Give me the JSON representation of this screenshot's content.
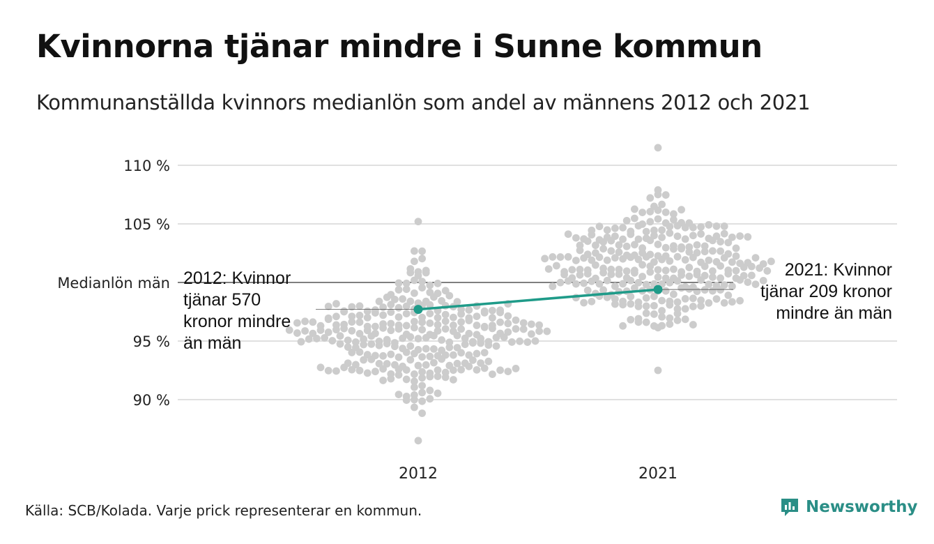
{
  "header": {
    "title": "Kvinnorna tjänar mindre i Sunne kommun",
    "subtitle": "Kommunanställda kvinnors medianlön som andel av männens 2012 och 2021"
  },
  "footer": {
    "source": "Källa: SCB/Kolada. Varje prick representerar en kommun.",
    "brand": "Newsworthy"
  },
  "colors": {
    "dots": "#cccccc",
    "highlight": "#1f9b89",
    "grid": "#e0e0e0",
    "reference": "#333333",
    "brand": "#2a8e86"
  },
  "chart_data": {
    "type": "scatter",
    "categories": [
      "2012",
      "2021"
    ],
    "ylim": [
      86,
      112
    ],
    "y_ticks": [
      {
        "value": 90,
        "label": "90 %"
      },
      {
        "value": 95,
        "label": "95 %"
      },
      {
        "value": 105,
        "label": "105 %"
      },
      {
        "value": 110,
        "label": "110 %"
      }
    ],
    "reference_line": {
      "value": 100,
      "label": "Medianlön män"
    },
    "distributions": [
      {
        "category": "2012",
        "min": 86.5,
        "max": 105.2,
        "mean": 95.5,
        "sd": 2.6,
        "count": 290
      },
      {
        "category": "2021",
        "min": 92.5,
        "max": 111.5,
        "mean": 101.2,
        "sd": 2.6,
        "count": 290
      }
    ],
    "highlight": {
      "name": "Sunne",
      "values": [
        {
          "category": "2012",
          "value": 97.7
        },
        {
          "category": "2021",
          "value": 99.4
        }
      ]
    },
    "annotations": [
      {
        "category": "2012",
        "lines": [
          "2012: Kvinnor",
          "tjänar 570",
          "kronor mindre",
          "än män"
        ]
      },
      {
        "category": "2021",
        "lines": [
          "2021: Kvinnor",
          "tjänar 209 kronor",
          "mindre än män"
        ]
      }
    ]
  }
}
